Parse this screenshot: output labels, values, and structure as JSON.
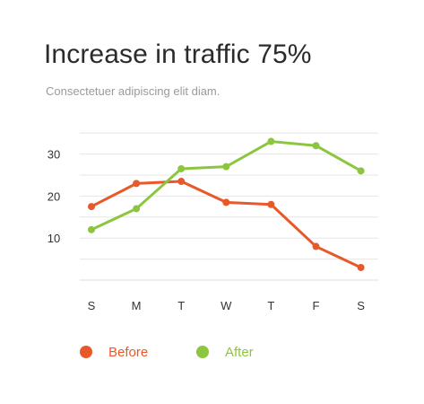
{
  "chart_data": {
    "type": "line",
    "title": "Increase in traffic 75%",
    "subtitle": "Consectetuer adipiscing elit diam.",
    "categories": [
      "S",
      "M",
      "T",
      "W",
      "T",
      "F",
      "S"
    ],
    "y_ticks": [
      "10",
      "20",
      "30"
    ],
    "ylim": [
      0,
      35
    ],
    "grid": true,
    "legend_position": "bottom-left",
    "series": [
      {
        "name": "Before",
        "color": "#e8592a",
        "values": [
          17.5,
          23,
          23.5,
          18.5,
          18,
          8,
          3
        ]
      },
      {
        "name": "After",
        "color": "#8cc63f",
        "values": [
          12,
          17,
          26.5,
          27,
          33,
          32,
          26
        ]
      }
    ]
  }
}
